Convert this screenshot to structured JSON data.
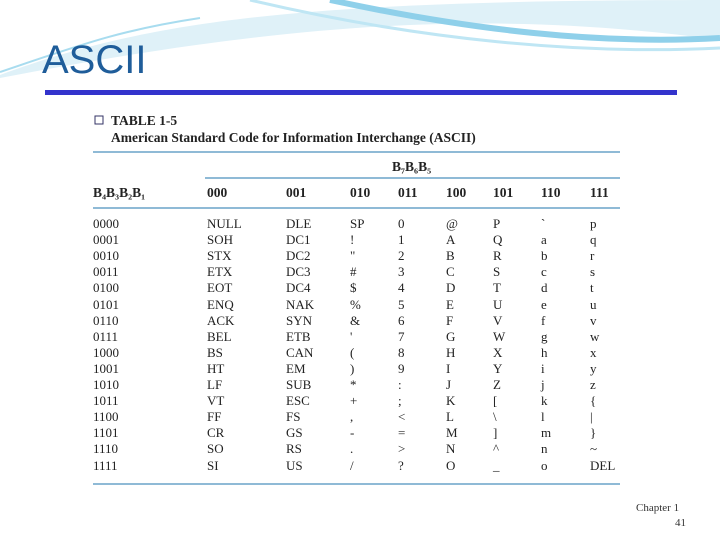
{
  "title": "ASCII",
  "table": {
    "label": "TABLE 1-5",
    "caption": "American Standard Code for Information Interchange (ASCII)",
    "group_header": "B₇B₆B₅",
    "row_header": "B₄B₃B₂B₁",
    "columns": [
      "000",
      "001",
      "010",
      "011",
      "100",
      "101",
      "110",
      "111"
    ],
    "rows": [
      [
        "0000",
        "NULL",
        "DLE",
        "SP",
        "0",
        "@",
        "P",
        "`",
        "p"
      ],
      [
        "0001",
        "SOH",
        "DC1",
        "!",
        "1",
        "A",
        "Q",
        "a",
        "q"
      ],
      [
        "0010",
        "STX",
        "DC2",
        "\"",
        "2",
        "B",
        "R",
        "b",
        "r"
      ],
      [
        "0011",
        "ETX",
        "DC3",
        "#",
        "3",
        "C",
        "S",
        "c",
        "s"
      ],
      [
        "0100",
        "EOT",
        "DC4",
        "$",
        "4",
        "D",
        "T",
        "d",
        "t"
      ],
      [
        "0101",
        "ENQ",
        "NAK",
        "%",
        "5",
        "E",
        "U",
        "e",
        "u"
      ],
      [
        "0110",
        "ACK",
        "SYN",
        "&",
        "6",
        "F",
        "V",
        "f",
        "v"
      ],
      [
        "0111",
        "BEL",
        "ETB",
        "'",
        "7",
        "G",
        "W",
        "g",
        "w"
      ],
      [
        "1000",
        "BS",
        "CAN",
        "(",
        "8",
        "H",
        "X",
        "h",
        "x"
      ],
      [
        "1001",
        "HT",
        "EM",
        ")",
        "9",
        "I",
        "Y",
        "i",
        "y"
      ],
      [
        "1010",
        "LF",
        "SUB",
        "*",
        ":",
        "J",
        "Z",
        "j",
        "z"
      ],
      [
        "1011",
        "VT",
        "ESC",
        "+",
        ";",
        "K",
        "[",
        "k",
        "{"
      ],
      [
        "1100",
        "FF",
        "FS",
        ",",
        "<",
        "L",
        "\\",
        "l",
        "|"
      ],
      [
        "1101",
        "CR",
        "GS",
        "-",
        "=",
        "M",
        "]",
        "m",
        "}"
      ],
      [
        "1110",
        "SO",
        "RS",
        ".",
        ">",
        "N",
        "^",
        "n",
        "~"
      ],
      [
        "1111",
        "SI",
        "US",
        "/",
        "?",
        "O",
        "_",
        "o",
        "DEL"
      ]
    ]
  },
  "footer": {
    "chapter": "Chapter 1",
    "page": "41"
  }
}
